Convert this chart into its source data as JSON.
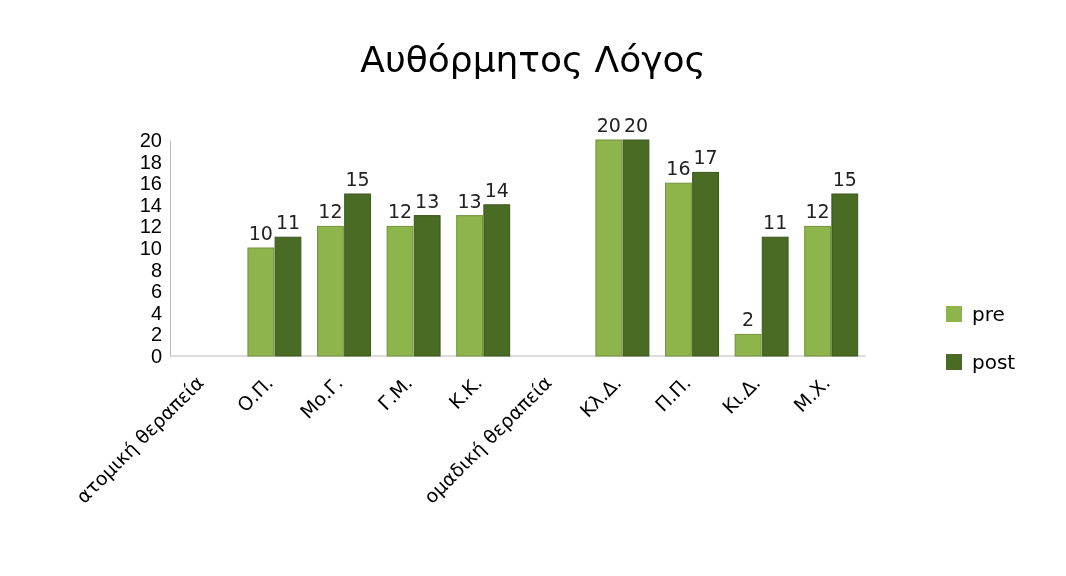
{
  "chart_data": {
    "type": "bar",
    "title": "Αυθόρμητος Λόγος",
    "categories": [
      "ατομική θεραπεία",
      "Ο.Π.",
      "Μο.Γ.",
      "Γ.Μ.",
      "Κ.Κ.",
      "ομαδική θεραπεία",
      "Κλ.Δ.",
      "Π.Π.",
      "Κι.Δ.",
      "Μ.Χ."
    ],
    "series": [
      {
        "name": "pre",
        "color": "#8db54b",
        "values": [
          null,
          10,
          12,
          12,
          13,
          null,
          20,
          16,
          2,
          12
        ]
      },
      {
        "name": "post",
        "color": "#4a6b23",
        "values": [
          null,
          11,
          15,
          13,
          14,
          null,
          20,
          17,
          11,
          15
        ]
      }
    ],
    "ylim": [
      0,
      20
    ],
    "yticks": [
      0,
      2,
      4,
      6,
      8,
      10,
      12,
      14,
      16,
      18,
      20
    ],
    "grid": false,
    "legend": "right",
    "data_labels": true
  }
}
